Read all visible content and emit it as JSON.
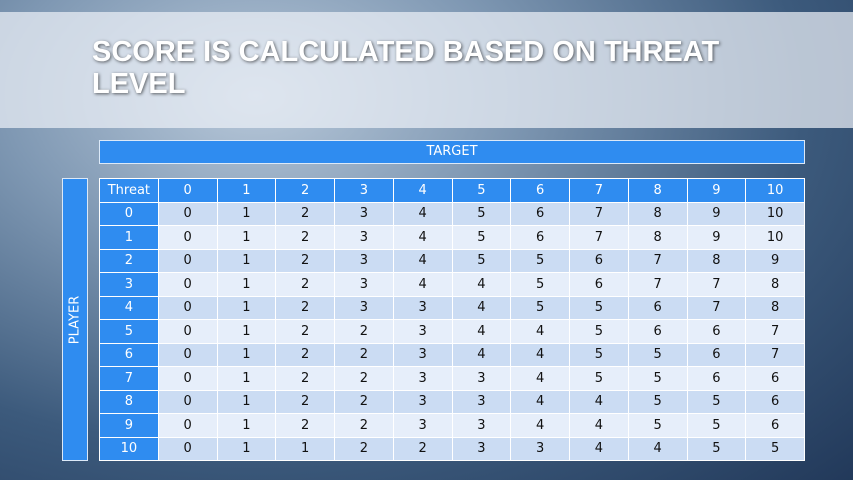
{
  "title": "SCORE IS CALCULATED BASED ON THREAT LEVEL",
  "table": {
    "column_group": "TARGET",
    "row_group": "PLAYER",
    "header": [
      "Threat",
      "0",
      "1",
      "2",
      "3",
      "4",
      "5",
      "6",
      "7",
      "8",
      "9",
      "10"
    ],
    "rows": [
      [
        "0",
        "0",
        "1",
        "2",
        "3",
        "4",
        "5",
        "6",
        "7",
        "8",
        "9",
        "10"
      ],
      [
        "1",
        "0",
        "1",
        "2",
        "3",
        "4",
        "5",
        "6",
        "7",
        "8",
        "9",
        "10"
      ],
      [
        "2",
        "0",
        "1",
        "2",
        "3",
        "4",
        "5",
        "5",
        "6",
        "7",
        "8",
        "9"
      ],
      [
        "3",
        "0",
        "1",
        "2",
        "3",
        "4",
        "4",
        "5",
        "6",
        "7",
        "7",
        "8"
      ],
      [
        "4",
        "0",
        "1",
        "2",
        "3",
        "3",
        "4",
        "5",
        "5",
        "6",
        "7",
        "8"
      ],
      [
        "5",
        "0",
        "1",
        "2",
        "2",
        "3",
        "4",
        "4",
        "5",
        "6",
        "6",
        "7"
      ],
      [
        "6",
        "0",
        "1",
        "2",
        "2",
        "3",
        "4",
        "4",
        "5",
        "5",
        "6",
        "7"
      ],
      [
        "7",
        "0",
        "1",
        "2",
        "2",
        "3",
        "3",
        "4",
        "5",
        "5",
        "6",
        "6"
      ],
      [
        "8",
        "0",
        "1",
        "2",
        "2",
        "3",
        "3",
        "4",
        "4",
        "5",
        "5",
        "6"
      ],
      [
        "9",
        "0",
        "1",
        "2",
        "2",
        "3",
        "3",
        "4",
        "4",
        "5",
        "5",
        "6"
      ],
      [
        "10",
        "0",
        "1",
        "1",
        "2",
        "2",
        "3",
        "3",
        "4",
        "4",
        "5",
        "5"
      ]
    ]
  }
}
